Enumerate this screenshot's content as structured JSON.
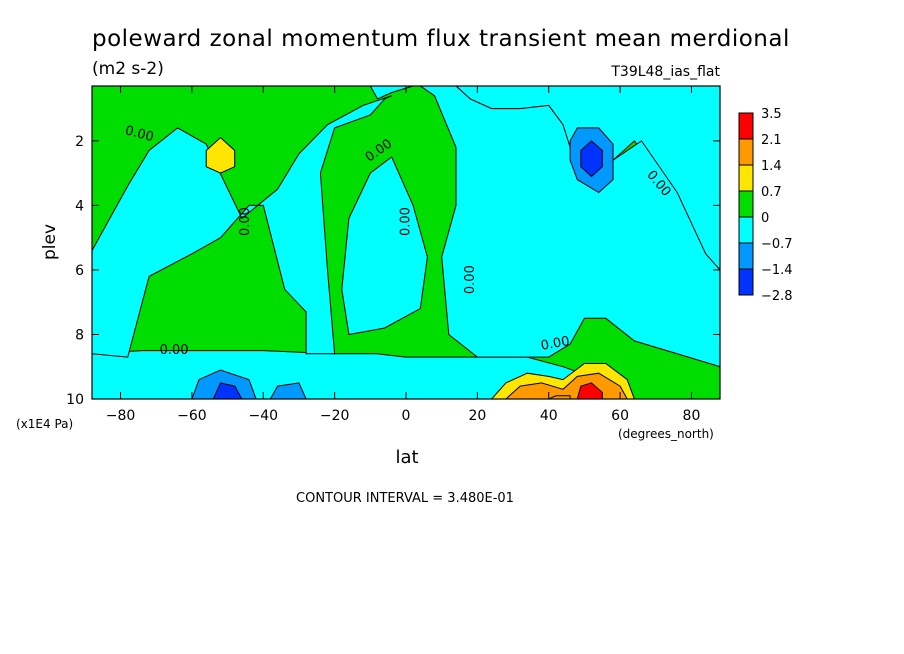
{
  "chart_data": {
    "type": "heatmap",
    "title": "poleward zonal momentum flux transient mean merdional",
    "units": "(m2 s-2)",
    "run_label": "T39L48_ias_flat",
    "xlabel": "lat",
    "x_units": "(degrees_north)",
    "ylabel": "plev",
    "y_units": "(x1E4 Pa)",
    "xlim": [
      -88,
      88
    ],
    "ylim": [
      10,
      0.3
    ],
    "x_ticks": [
      -80,
      -60,
      -40,
      -20,
      0,
      20,
      40,
      60,
      80
    ],
    "x_tick_labels": [
      "−80",
      "−60",
      "−40",
      "−20",
      "0",
      "20",
      "40",
      "60",
      "80"
    ],
    "y_ticks": [
      2,
      4,
      6,
      8,
      10
    ],
    "y_tick_labels": [
      "2",
      "4",
      "6",
      "8",
      "10"
    ],
    "contour_interval_text": "CONTOUR INTERVAL = 3.480E-01",
    "colorbar": {
      "labels": [
        "3.5",
        "2.1",
        "1.4",
        "0.7",
        "0",
        "−0.7",
        "−1.4",
        "−2.8"
      ],
      "colors": [
        "#ff0000",
        "#ff9900",
        "#ffe600",
        "#00dd00",
        "#00ffff",
        "#0099ff",
        "#0033ff"
      ]
    },
    "contour_labels": [
      {
        "text": "0.00",
        "lat": -75,
        "p": 1.9,
        "angle": 15
      },
      {
        "text": "0.00",
        "lat": -44,
        "p": 4.5,
        "angle": -90
      },
      {
        "text": "0.00",
        "lat": -7,
        "p": 2.4,
        "angle": -35
      },
      {
        "text": "0.00",
        "lat": 1,
        "p": 4.5,
        "angle": -90
      },
      {
        "text": "0.00",
        "lat": 19,
        "p": 6.3,
        "angle": -90
      },
      {
        "text": "0.00",
        "lat": 70,
        "p": 3.4,
        "angle": 50
      },
      {
        "text": "0.00",
        "lat": -65,
        "p": 8.6,
        "angle": 0
      },
      {
        "text": "0.00",
        "lat": 42,
        "p": 8.4,
        "angle": -10
      }
    ],
    "fields": {
      "green_zero_plus": [
        [
          [
            -88,
            0.3
          ],
          [
            -10,
            0.3
          ],
          [
            -8,
            0.7
          ],
          [
            -4,
            0.5
          ],
          [
            2,
            0.3
          ],
          [
            14,
            0.3
          ],
          [
            18,
            0.7
          ],
          [
            24,
            1.0
          ],
          [
            32,
            1.0
          ],
          [
            40,
            0.9
          ],
          [
            44,
            1.5
          ],
          [
            42,
            2.1
          ],
          [
            42,
            3.0
          ],
          [
            48,
            3.3
          ],
          [
            54,
            3.3
          ],
          [
            58,
            2.6
          ],
          [
            64,
            2.0
          ],
          [
            76,
            3.8
          ],
          [
            84,
            5.5
          ],
          [
            88,
            6.2
          ],
          [
            88,
            10
          ],
          [
            64,
            10
          ],
          [
            54,
            9.4
          ],
          [
            44,
            9.0
          ],
          [
            34,
            8.7
          ],
          [
            24,
            8.7
          ],
          [
            12,
            8.7
          ],
          [
            0,
            8.7
          ],
          [
            -8,
            8.6
          ],
          [
            -20,
            8.6
          ],
          [
            -40,
            8.5
          ],
          [
            -60,
            8.5
          ],
          [
            -74,
            8.5
          ],
          [
            -88,
            8.6
          ]
        ]
      ],
      "cyan_zero_minus": [
        [
          [
            -78,
            8.7
          ],
          [
            -72,
            6.2
          ],
          [
            -60,
            5.5
          ],
          [
            -52,
            5.0
          ],
          [
            -44,
            4.0
          ],
          [
            -40,
            4.0
          ],
          [
            -34,
            6.6
          ],
          [
            -28,
            7.3
          ],
          [
            -28,
            8.6
          ],
          [
            -20,
            8.6
          ],
          [
            -22,
            6.0
          ],
          [
            -24,
            3.0
          ],
          [
            -20,
            1.6
          ],
          [
            -10,
            1.2
          ],
          [
            -6,
            0.7
          ],
          [
            -4,
            0.6
          ],
          [
            -12,
            0.9
          ],
          [
            -22,
            1.5
          ],
          [
            -30,
            2.4
          ],
          [
            -36,
            3.5
          ],
          [
            -46,
            4.4
          ],
          [
            -56,
            2.1
          ],
          [
            -64,
            1.6
          ],
          [
            -72,
            2.3
          ],
          [
            -78,
            3.4
          ],
          [
            -84,
            4.6
          ],
          [
            -88,
            5.4
          ],
          [
            -88,
            8.6
          ]
        ],
        [
          [
            -10,
            3.0
          ],
          [
            -4,
            2.5
          ],
          [
            2,
            4.0
          ],
          [
            6,
            5.6
          ],
          [
            4,
            7.2
          ],
          [
            -6,
            7.8
          ],
          [
            -16,
            8.0
          ],
          [
            -18,
            6.6
          ],
          [
            -16,
            4.4
          ]
        ],
        [
          [
            4,
            0.3
          ],
          [
            14,
            0.3
          ],
          [
            18,
            0.7
          ],
          [
            24,
            1.0
          ],
          [
            32,
            1.0
          ],
          [
            40,
            0.9
          ],
          [
            44,
            1.5
          ],
          [
            46,
            2.2
          ],
          [
            52,
            3.4
          ],
          [
            58,
            2.6
          ],
          [
            66,
            2.0
          ],
          [
            76,
            3.6
          ],
          [
            84,
            5.5
          ],
          [
            88,
            6.0
          ],
          [
            88,
            9.0
          ],
          [
            64,
            8.2
          ],
          [
            56,
            7.5
          ],
          [
            50,
            7.5
          ],
          [
            46,
            8.3
          ],
          [
            40,
            8.7
          ],
          [
            30,
            8.7
          ],
          [
            20,
            8.7
          ],
          [
            12,
            8.0
          ],
          [
            10,
            5.6
          ],
          [
            14,
            4.0
          ],
          [
            14,
            2.2
          ],
          [
            8,
            0.6
          ]
        ]
      ],
      "blue_low": [
        [
          [
            -60,
            10
          ],
          [
            -58,
            9.4
          ],
          [
            -52,
            9.1
          ],
          [
            -44,
            9.4
          ],
          [
            -42,
            10
          ]
        ],
        [
          [
            -38,
            10
          ],
          [
            -36,
            9.6
          ],
          [
            -30,
            9.5
          ],
          [
            -28,
            10
          ]
        ],
        [
          [
            46,
            2.0
          ],
          [
            48,
            1.6
          ],
          [
            54,
            1.6
          ],
          [
            58,
            2.1
          ],
          [
            58,
            3.2
          ],
          [
            54,
            3.6
          ],
          [
            48,
            3.2
          ],
          [
            46,
            2.6
          ]
        ]
      ],
      "deep_blue_low": [
        [
          [
            -54,
            10
          ],
          [
            -52,
            9.5
          ],
          [
            -48,
            9.6
          ],
          [
            -46,
            10
          ]
        ],
        [
          [
            49,
            2.3
          ],
          [
            52,
            2.0
          ],
          [
            55,
            2.3
          ],
          [
            55,
            2.8
          ],
          [
            52,
            3.1
          ],
          [
            49,
            2.8
          ]
        ]
      ],
      "yellow_high": [
        [
          [
            24,
            10
          ],
          [
            28,
            9.5
          ],
          [
            34,
            9.2
          ],
          [
            40,
            9.3
          ],
          [
            44,
            9.4
          ],
          [
            50,
            8.9
          ],
          [
            56,
            8.9
          ],
          [
            62,
            9.4
          ],
          [
            64,
            10
          ]
        ],
        [
          [
            -56,
            2.3
          ],
          [
            -52,
            1.9
          ],
          [
            -48,
            2.3
          ],
          [
            -48,
            2.8
          ],
          [
            -52,
            3.0
          ],
          [
            -56,
            2.8
          ]
        ]
      ],
      "orange_high": [
        [
          [
            28,
            10
          ],
          [
            32,
            9.6
          ],
          [
            38,
            9.5
          ],
          [
            44,
            9.7
          ],
          [
            48,
            9.3
          ],
          [
            54,
            9.2
          ],
          [
            60,
            9.6
          ],
          [
            62,
            10
          ]
        ],
        [
          [
            40,
            10
          ],
          [
            42,
            9.9
          ],
          [
            46,
            9.9
          ],
          [
            46,
            10
          ]
        ]
      ],
      "red_high": [
        [
          [
            48,
            10
          ],
          [
            49,
            9.6
          ],
          [
            52,
            9.5
          ],
          [
            55,
            9.8
          ],
          [
            55,
            10
          ]
        ]
      ]
    }
  }
}
